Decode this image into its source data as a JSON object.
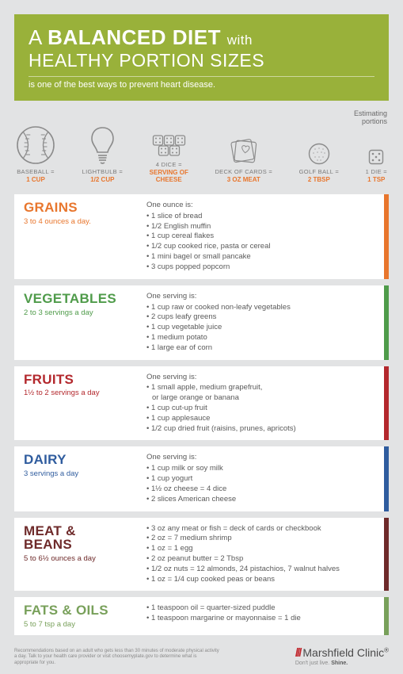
{
  "colors": {
    "header_bg": "#99b13a",
    "page_bg": "#e2e3e4",
    "icon_stroke": "#8b8b8b",
    "orange": "#e8762d",
    "green": "#4f9b4a",
    "red": "#b3282d",
    "blue": "#2f5c9e",
    "maroon": "#6e2a2a",
    "olive": "#78a05a"
  },
  "header": {
    "title_a": "A",
    "title_bold": "BALANCED DIET",
    "title_with": "with",
    "title_line2": "HEALTHY PORTION SIZES",
    "sub": "is one of the best ways to prevent heart disease."
  },
  "est_label": "Estimating\nportions",
  "portions": [
    {
      "label": "BASEBALL =",
      "value": "1 CUP",
      "color": "#e8762d",
      "icon": "baseball",
      "size": 50
    },
    {
      "label": "LIGHTBULB =",
      "value": "1/2 CUP",
      "color": "#e8762d",
      "icon": "lightbulb",
      "size": 50
    },
    {
      "label": "4 DICE =",
      "value": "SERVING OF\nCHEESE",
      "color": "#e8762d",
      "icon": "dice4",
      "size": 30
    },
    {
      "label": "DECK OF CARDS =",
      "value": "3 OZ MEAT",
      "color": "#e8762d",
      "icon": "cards",
      "size": 34
    },
    {
      "label": "GOLF BALL =",
      "value": "2 TBSP",
      "color": "#e8762d",
      "icon": "golfball",
      "size": 28
    },
    {
      "label": "1 DIE =",
      "value": "1 TSP",
      "color": "#e8762d",
      "icon": "die",
      "size": 20
    }
  ],
  "categories": [
    {
      "title": "GRAINS",
      "sub": "3 to 4 ounces a day.",
      "color": "#e8762d",
      "lead": "One ounce is:",
      "items": [
        "1 slice of bread",
        "1/2 English muffin",
        "1 cup cereal flakes",
        "1/2 cup cooked rice, pasta or cereal",
        "1 mini bagel or small pancake",
        "3 cups popped popcorn"
      ]
    },
    {
      "title": "VEGETABLES",
      "sub": "2 to 3 servings a day",
      "color": "#4f9b4a",
      "lead": "One serving is:",
      "items": [
        "1 cup raw or cooked non-leafy vegetables",
        "2 cups leafy greens",
        "1 cup vegetable juice",
        "1 medium potato",
        "1 large ear of corn"
      ]
    },
    {
      "title": "FRUITS",
      "sub": "1½ to 2 servings a day",
      "color": "#b3282d",
      "lead": "One serving is:",
      "items": [
        "1 small apple, medium grapefruit,",
        {
          "cont": true,
          "text": "or large orange or banana"
        },
        "1 cup cut-up fruit",
        "1 cup applesauce",
        "1/2 cup dried fruit (raisins, prunes, apricots)"
      ]
    },
    {
      "title": "DAIRY",
      "sub": "3 servings a day",
      "color": "#2f5c9e",
      "lead": "One serving is:",
      "items": [
        "1 cup milk or soy milk",
        "1 cup yogurt",
        "1½ oz cheese = 4 dice",
        "2 slices American cheese"
      ]
    },
    {
      "title": "MEAT &\nBEANS",
      "sub": "5 to 6½ ounces a day",
      "color": "#6e2a2a",
      "lead": "",
      "items": [
        "3 oz any meat or fish = deck of cards or checkbook",
        "2 oz = 7 medium shrimp",
        "1 oz = 1 egg",
        "2 oz peanut butter = 2 Tbsp",
        "1/2 oz nuts = 12 almonds, 24 pistachios, 7 walnut halves",
        "1 oz = 1/4 cup cooked peas or beans"
      ]
    },
    {
      "title": "FATS & OILS",
      "sub": "5 to 7 tsp a day",
      "color": "#78a05a",
      "lead": "",
      "items": [
        "1 teaspoon oil = quarter-sized puddle",
        "1 teaspoon margarine or mayonnaise = 1 die"
      ]
    }
  ],
  "footer": {
    "disc": "Recommendations based on an adult who gets less than 30 minutes of moderate physical activity a day. Talk to your health care provider or visit choosemyplate.gov to determine what is appropriate for you.",
    "brand": "Marshfield Clinic",
    "tag_pre": "Don't just live.",
    "tag_bold": "Shine."
  }
}
